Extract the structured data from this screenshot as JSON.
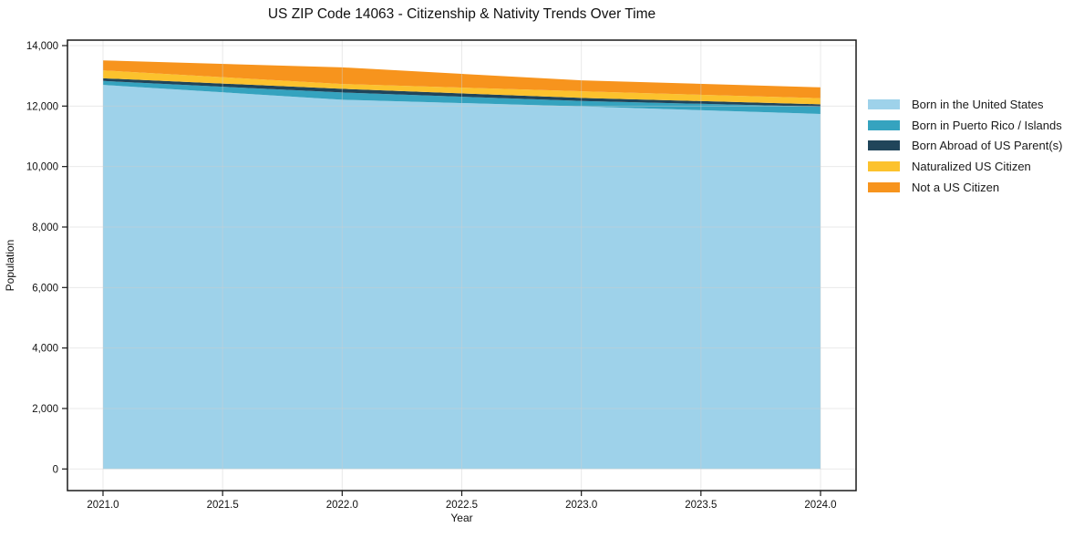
{
  "chart_data": {
    "type": "area",
    "stacked": true,
    "title": "US ZIP Code 14063 - Citizenship & Nativity Trends Over Time",
    "xlabel": "Year",
    "ylabel": "Population",
    "grid": true,
    "legend_position": "right-outside",
    "x": [
      2021,
      2022,
      2023,
      2024
    ],
    "xlim": [
      2021,
      2024
    ],
    "ylim": [
      0,
      14000
    ],
    "series": [
      {
        "name": "Born in the United States",
        "color": "#9ed2ea",
        "values": [
          12700,
          12210,
          11990,
          11740
        ]
      },
      {
        "name": "Born in Puerto Rico / Islands",
        "color": "#35a3bf",
        "values": [
          130,
          240,
          180,
          240
        ]
      },
      {
        "name": "Born Abroad of US Parent(s)",
        "color": "#20455a",
        "values": [
          90,
          120,
          100,
          80
        ]
      },
      {
        "name": "Naturalized US Citizen",
        "color": "#fcc22d",
        "values": [
          260,
          160,
          220,
          200
        ]
      },
      {
        "name": "Not a US Citizen",
        "color": "#f7941d",
        "values": [
          330,
          550,
          360,
          360
        ]
      }
    ],
    "xticks": {
      "values": [
        2021.0,
        2021.5,
        2022.0,
        2022.5,
        2023.0,
        2023.5,
        2024.0
      ],
      "labels": [
        "2021.0",
        "2021.5",
        "2022.0",
        "2022.5",
        "2023.0",
        "2023.5",
        "2024.0"
      ]
    },
    "yticks": {
      "values": [
        0,
        2000,
        4000,
        6000,
        8000,
        10000,
        12000,
        14000
      ],
      "labels": [
        "0",
        "2,000",
        "4,000",
        "6,000",
        "8,000",
        "10,000",
        "12,000",
        "14,000"
      ]
    }
  }
}
